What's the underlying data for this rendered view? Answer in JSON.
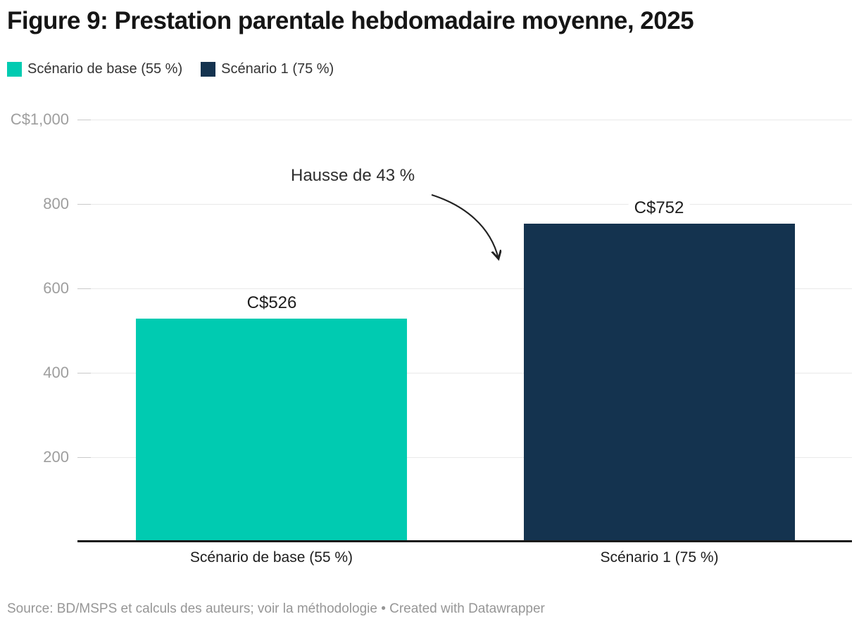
{
  "title": "Figure 9: Prestation parentale hebdomadaire moyenne, 2025",
  "legend": {
    "items": [
      {
        "label": "Scénario de base (55 %)",
        "color": "#00CBB1"
      },
      {
        "label": "Scénario 1 (75 %)",
        "color": "#14334F"
      }
    ]
  },
  "annotation": {
    "text": "Hausse de 43 %"
  },
  "footer": {
    "text": "Source: BD/MSPS et calculs des auteurs; voir la méthodologie • Created with Datawrapper"
  },
  "chart_data": {
    "type": "bar",
    "title": "Figure 9: Prestation parentale hebdomadaire moyenne, 2025",
    "categories": [
      "Scénario de base (55 %)",
      "Scénario 1 (75 %)"
    ],
    "values": [
      526,
      752
    ],
    "value_labels": [
      "C$526",
      "C$752"
    ],
    "colors": [
      "#00CBB1",
      "#14334F"
    ],
    "currency": "C$",
    "ylim": [
      0,
      1000
    ],
    "y_ticks": [
      {
        "value": 1000,
        "label": "C$1,000"
      },
      {
        "value": 800,
        "label": "800"
      },
      {
        "value": 600,
        "label": "600"
      },
      {
        "value": 400,
        "label": "400"
      },
      {
        "value": 200,
        "label": "200"
      }
    ],
    "grid": true,
    "legend_position": "top",
    "annotation": "Hausse de 43 %",
    "source": "Source: BD/MSPS et calculs des auteurs; voir la méthodologie • Created with Datawrapper"
  }
}
